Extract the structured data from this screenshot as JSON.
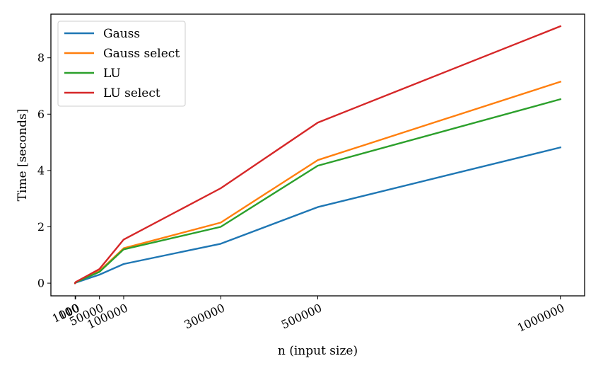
{
  "chart_data": {
    "type": "line",
    "title": "",
    "xlabel": "n (input size)",
    "ylabel": "Time [seconds]",
    "x": [
      10,
      100,
      1000,
      50000,
      100000,
      300000,
      500000,
      1000000
    ],
    "x_tick_values": [
      10,
      100,
      1000,
      50000,
      100000,
      300000,
      500000,
      1000000
    ],
    "x_tick_labels": [
      "10",
      "100",
      "1000",
      "50000",
      "100000",
      "300000",
      "500000",
      "1000000"
    ],
    "xlim": [
      -50000,
      1050000
    ],
    "ylim": [
      -0.45,
      9.55
    ],
    "y_tick_values": [
      0,
      2,
      4,
      6,
      8
    ],
    "y_tick_labels": [
      "0",
      "2",
      "4",
      "6",
      "8"
    ],
    "grid": false,
    "legend_position": "top-left",
    "series": [
      {
        "name": "Gauss",
        "color": "#1f77b4",
        "values": [
          0.0,
          0.0,
          0.02,
          0.3,
          0.68,
          1.4,
          2.7,
          4.82
        ]
      },
      {
        "name": "Gauss select",
        "color": "#ff7f0e",
        "values": [
          0.0,
          0.0,
          0.03,
          0.43,
          1.24,
          2.15,
          4.37,
          7.15
        ]
      },
      {
        "name": "LU",
        "color": "#2ca02c",
        "values": [
          0.0,
          0.0,
          0.03,
          0.4,
          1.2,
          2.0,
          4.17,
          6.53
        ]
      },
      {
        "name": "LU select",
        "color": "#d62728",
        "values": [
          0.0,
          0.0,
          0.04,
          0.5,
          1.55,
          3.37,
          5.7,
          9.12
        ]
      }
    ]
  }
}
